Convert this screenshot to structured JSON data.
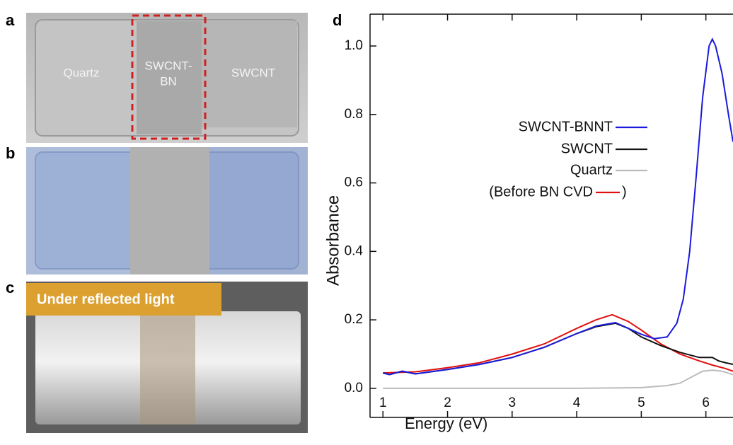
{
  "panels": {
    "a": {
      "letter": "a",
      "labels": [
        "Quartz",
        "SWCNT-",
        "BN",
        "SWCNT"
      ]
    },
    "b": {
      "letter": "b"
    },
    "c": {
      "letter": "c",
      "banner": "Under reflected light"
    }
  },
  "chart_data": {
    "type": "line",
    "panel_letter": "d",
    "xlabel": "Energy (eV)",
    "ylabel": "Absorbance",
    "xlim": [
      0.8,
      6.42
    ],
    "ylim": [
      -0.085,
      1.093
    ],
    "xticks": [
      1,
      2,
      3,
      4,
      5,
      6
    ],
    "yticks": [
      {
        "value": 0,
        "label": "0.0"
      },
      0.2,
      0.4,
      0.6,
      0.8,
      {
        "value": 1,
        "label": "1.0"
      }
    ],
    "legend_close": ")",
    "series": [
      {
        "name": "SWCNT-BNNT",
        "color": "#1a1adc",
        "x": [
          1,
          1.1,
          1.3,
          1.5,
          2,
          2.5,
          3,
          3.5,
          4,
          4.3,
          4.6,
          4.8,
          5,
          5.2,
          5.4,
          5.55,
          5.65,
          5.75,
          5.85,
          5.95,
          6.05,
          6.1,
          6.15,
          6.25,
          6.35,
          6.42
        ],
        "values": [
          0.045,
          0.04,
          0.05,
          0.042,
          0.055,
          0.07,
          0.09,
          0.12,
          0.16,
          0.182,
          0.192,
          0.175,
          0.158,
          0.145,
          0.15,
          0.19,
          0.26,
          0.4,
          0.62,
          0.85,
          1.0,
          1.02,
          1.0,
          0.92,
          0.8,
          0.72
        ]
      },
      {
        "name": "SWCNT",
        "color": "#111111",
        "x": [
          1,
          1.1,
          1.3,
          1.5,
          2,
          2.5,
          3,
          3.5,
          4,
          4.3,
          4.6,
          4.8,
          5,
          5.3,
          5.6,
          5.9,
          6.1,
          6.2,
          6.3,
          6.42
        ],
        "values": [
          0.045,
          0.04,
          0.05,
          0.042,
          0.055,
          0.07,
          0.09,
          0.12,
          0.16,
          0.18,
          0.19,
          0.175,
          0.15,
          0.125,
          0.105,
          0.09,
          0.09,
          0.08,
          0.075,
          0.07
        ]
      },
      {
        "name": "Quartz",
        "color": "#bbbbbb",
        "x": [
          1,
          2,
          3,
          4,
          5,
          5.4,
          5.6,
          5.8,
          5.95,
          6.1,
          6.25,
          6.42
        ],
        "values": [
          0.0,
          0.0,
          0.0,
          0.0,
          0.002,
          0.008,
          0.015,
          0.035,
          0.05,
          0.053,
          0.05,
          0.04
        ]
      },
      {
        "name": "(Before BN CVD",
        "color": "#e01010",
        "x": [
          1,
          1.5,
          2,
          2.5,
          3,
          3.5,
          4,
          4.3,
          4.55,
          4.8,
          5,
          5.3,
          5.6,
          5.9,
          6.1,
          6.3,
          6.42
        ],
        "values": [
          0.045,
          0.048,
          0.06,
          0.075,
          0.1,
          0.13,
          0.175,
          0.2,
          0.215,
          0.195,
          0.17,
          0.13,
          0.1,
          0.08,
          0.068,
          0.058,
          0.05
        ]
      }
    ]
  }
}
